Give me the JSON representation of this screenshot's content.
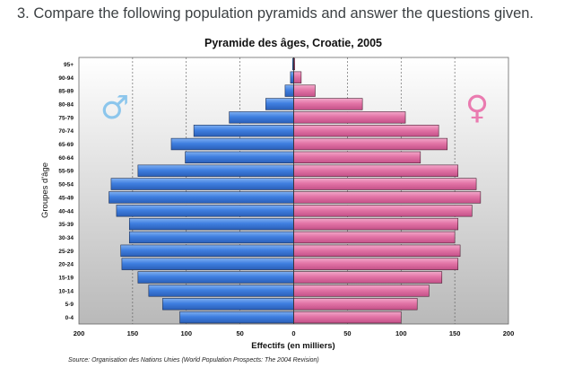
{
  "question": "3. Compare the following population pyramids and answer the questions given.",
  "colors": {
    "male": "#3f7fe0",
    "female": "#e274a6",
    "male_symbol": "#8cc6ec",
    "female_symbol": "#ea7bb0"
  },
  "chart_data": {
    "type": "bar",
    "orientation": "horizontal-pyramid",
    "title": "Pyramide des âges, Croatie, 2005",
    "xlabel": "Effectifs (en milliers)",
    "ylabel": "Groupes d'âge",
    "source": "Source: Organisation des Nations Unies (World Population Prospects: The 2004 Revision)",
    "xlim": [
      -200,
      200
    ],
    "x_ticks": [
      -200,
      -150,
      -100,
      -50,
      0,
      50,
      100,
      150,
      200
    ],
    "x_tick_labels": [
      "200",
      "150",
      "100",
      "50",
      "0",
      "50",
      "100",
      "150",
      "200"
    ],
    "grid": true,
    "legend_symbols": {
      "male": "♂",
      "female": "♀"
    },
    "categories": [
      "0-4",
      "5-9",
      "10-14",
      "15-19",
      "20-24",
      "25-29",
      "30-34",
      "35-39",
      "40-44",
      "45-49",
      "50-54",
      "55-59",
      "60-64",
      "65-69",
      "70-74",
      "75-79",
      "80-84",
      "85-89",
      "90-94",
      "95+"
    ],
    "series": [
      {
        "values": [
          106,
          122,
          135,
          145,
          160,
          161,
          153,
          153,
          165,
          172,
          170,
          145,
          101,
          114,
          93,
          60,
          26,
          8,
          3,
          1
        ]
      },
      {
        "values": [
          100,
          115,
          126,
          138,
          153,
          155,
          150,
          153,
          166,
          174,
          170,
          153,
          118,
          143,
          135,
          104,
          64,
          20,
          7,
          1
        ]
      }
    ]
  }
}
